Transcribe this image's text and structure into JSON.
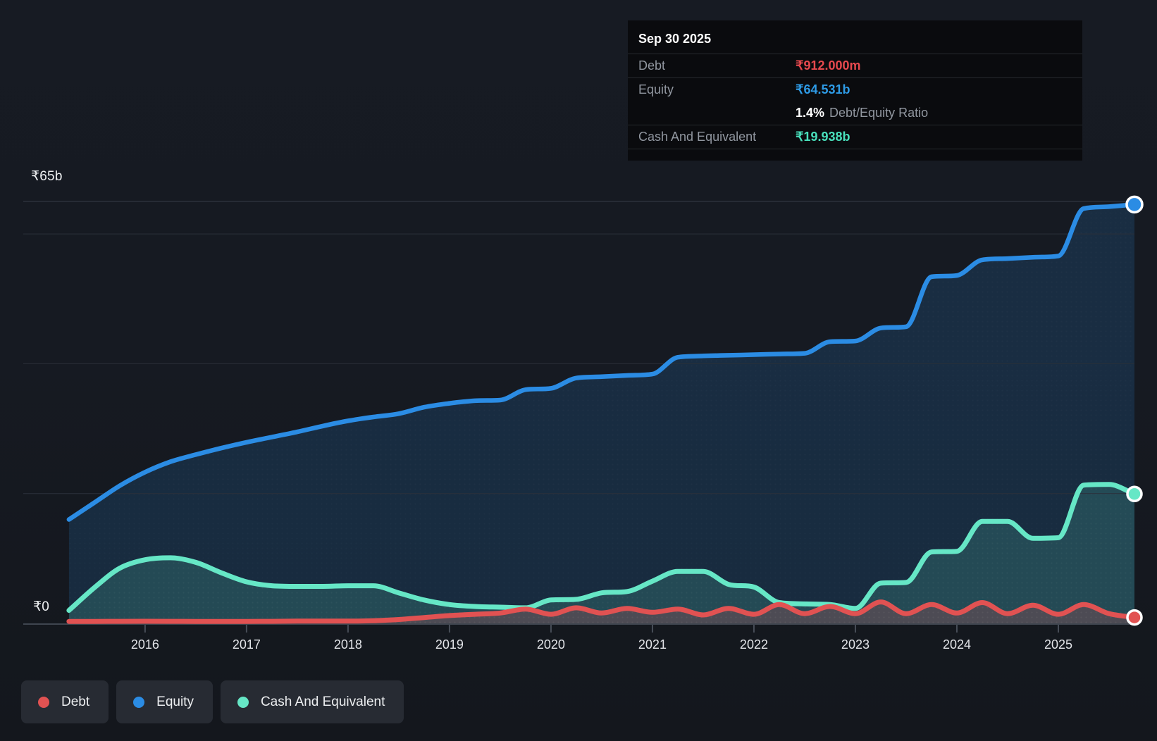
{
  "chart_data": {
    "type": "area",
    "x_axis": {
      "ticks": [
        "2016",
        "2017",
        "2018",
        "2019",
        "2020",
        "2021",
        "2022",
        "2023",
        "2024",
        "2025"
      ]
    },
    "y_axis": {
      "label_top": "₹65b",
      "label_zero": "₹0",
      "max_value": 65,
      "unit": "₹ billions",
      "gridlines": [
        20,
        40,
        60
      ]
    },
    "legend_position": "bottom-left",
    "series": [
      {
        "name": "Debt",
        "color": "#e15252",
        "points": [
          [
            2015.25,
            0.3
          ],
          [
            2015.5,
            0.3
          ],
          [
            2015.75,
            0.32
          ],
          [
            2016.0,
            0.33
          ],
          [
            2016.25,
            0.32
          ],
          [
            2016.5,
            0.3
          ],
          [
            2016.75,
            0.3
          ],
          [
            2017.0,
            0.3
          ],
          [
            2017.25,
            0.32
          ],
          [
            2017.5,
            0.35
          ],
          [
            2017.75,
            0.35
          ],
          [
            2018.0,
            0.35
          ],
          [
            2018.25,
            0.4
          ],
          [
            2018.5,
            0.6
          ],
          [
            2018.75,
            0.9
          ],
          [
            2019.0,
            1.2
          ],
          [
            2019.25,
            1.4
          ],
          [
            2019.5,
            1.6
          ],
          [
            2019.75,
            2.2
          ],
          [
            2020.0,
            1.4
          ],
          [
            2020.25,
            2.4
          ],
          [
            2020.5,
            1.6
          ],
          [
            2020.75,
            2.3
          ],
          [
            2021.0,
            1.7
          ],
          [
            2021.25,
            2.2
          ],
          [
            2021.5,
            1.3
          ],
          [
            2021.75,
            2.3
          ],
          [
            2022.0,
            1.4
          ],
          [
            2022.25,
            2.9
          ],
          [
            2022.5,
            1.5
          ],
          [
            2022.75,
            2.6
          ],
          [
            2023.0,
            1.5
          ],
          [
            2023.25,
            3.3
          ],
          [
            2023.5,
            1.5
          ],
          [
            2023.75,
            2.9
          ],
          [
            2024.0,
            1.6
          ],
          [
            2024.25,
            3.2
          ],
          [
            2024.5,
            1.5
          ],
          [
            2024.75,
            2.8
          ],
          [
            2025.0,
            1.4
          ],
          [
            2025.25,
            2.9
          ],
          [
            2025.5,
            1.5
          ],
          [
            2025.75,
            0.912
          ]
        ]
      },
      {
        "name": "Equity",
        "color": "#2b8ce4",
        "points": [
          [
            2015.25,
            16.0
          ],
          [
            2015.5,
            18.6
          ],
          [
            2015.75,
            21.2
          ],
          [
            2016.0,
            23.3
          ],
          [
            2016.25,
            24.9
          ],
          [
            2016.5,
            26.0
          ],
          [
            2016.75,
            27.0
          ],
          [
            2017.0,
            27.9
          ],
          [
            2017.25,
            28.7
          ],
          [
            2017.5,
            29.5
          ],
          [
            2017.75,
            30.4
          ],
          [
            2018.0,
            31.2
          ],
          [
            2018.25,
            31.8
          ],
          [
            2018.5,
            32.3
          ],
          [
            2018.75,
            33.3
          ],
          [
            2019.0,
            33.9
          ],
          [
            2019.25,
            34.3
          ],
          [
            2019.5,
            34.4
          ],
          [
            2019.75,
            36.0
          ],
          [
            2020.0,
            36.2
          ],
          [
            2020.25,
            37.8
          ],
          [
            2020.5,
            38.0
          ],
          [
            2020.75,
            38.2
          ],
          [
            2021.0,
            38.4
          ],
          [
            2021.25,
            41.0
          ],
          [
            2021.5,
            41.2
          ],
          [
            2021.75,
            41.3
          ],
          [
            2022.0,
            41.4
          ],
          [
            2022.25,
            41.5
          ],
          [
            2022.5,
            41.6
          ],
          [
            2022.75,
            43.4
          ],
          [
            2023.0,
            43.5
          ],
          [
            2023.25,
            45.5
          ],
          [
            2023.5,
            45.7
          ],
          [
            2023.75,
            53.4
          ],
          [
            2024.0,
            53.6
          ],
          [
            2024.25,
            56.0
          ],
          [
            2024.5,
            56.2
          ],
          [
            2024.75,
            56.4
          ],
          [
            2025.0,
            56.6
          ],
          [
            2025.25,
            63.9
          ],
          [
            2025.5,
            64.2
          ],
          [
            2025.75,
            64.531
          ]
        ]
      },
      {
        "name": "Cash And Equivalent",
        "color": "#66e7c6",
        "points": [
          [
            2015.25,
            2.0
          ],
          [
            2015.5,
            5.5
          ],
          [
            2015.75,
            8.5
          ],
          [
            2016.0,
            9.8
          ],
          [
            2016.25,
            10.1
          ],
          [
            2016.5,
            9.4
          ],
          [
            2016.75,
            7.8
          ],
          [
            2017.0,
            6.4
          ],
          [
            2017.25,
            5.8
          ],
          [
            2017.5,
            5.7
          ],
          [
            2017.75,
            5.7
          ],
          [
            2018.0,
            5.8
          ],
          [
            2018.25,
            5.8
          ],
          [
            2018.5,
            4.7
          ],
          [
            2018.75,
            3.6
          ],
          [
            2019.0,
            2.9
          ],
          [
            2019.25,
            2.6
          ],
          [
            2019.5,
            2.5
          ],
          [
            2019.75,
            2.4
          ],
          [
            2020.0,
            3.6
          ],
          [
            2020.25,
            3.7
          ],
          [
            2020.5,
            4.7
          ],
          [
            2020.75,
            4.9
          ],
          [
            2021.0,
            6.5
          ],
          [
            2021.25,
            8.0
          ],
          [
            2021.5,
            8.0
          ],
          [
            2021.75,
            6.0
          ],
          [
            2022.0,
            5.6
          ],
          [
            2022.25,
            3.2
          ],
          [
            2022.5,
            3.0
          ],
          [
            2022.75,
            2.9
          ],
          [
            2023.0,
            2.3
          ],
          [
            2023.25,
            6.2
          ],
          [
            2023.5,
            6.3
          ],
          [
            2023.75,
            11.0
          ],
          [
            2024.0,
            11.1
          ],
          [
            2024.25,
            15.7
          ],
          [
            2024.5,
            15.7
          ],
          [
            2024.75,
            13.1
          ],
          [
            2025.0,
            13.2
          ],
          [
            2025.25,
            21.3
          ],
          [
            2025.5,
            21.4
          ],
          [
            2025.75,
            19.938
          ]
        ]
      }
    ]
  },
  "tooltip": {
    "date": "Sep 30 2025",
    "debt_label": "Debt",
    "debt_value": "₹912.000m",
    "equity_label": "Equity",
    "equity_value": "₹64.531b",
    "ratio_value": "1.4%",
    "ratio_label": "Debt/Equity Ratio",
    "cash_label": "Cash And Equivalent",
    "cash_value": "₹19.938b"
  },
  "legend": {
    "items": [
      {
        "label": "Debt",
        "color": "#e15252"
      },
      {
        "label": "Equity",
        "color": "#2b8ce4"
      },
      {
        "label": "Cash And Equivalent",
        "color": "#66e7c6"
      }
    ]
  }
}
